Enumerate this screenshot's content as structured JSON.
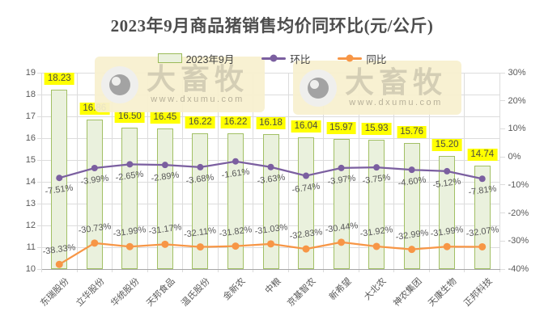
{
  "title": "2023年9月商品猪销售均价同环比(元/公斤)",
  "legend": [
    {
      "label": "2023年9月",
      "type": "bar",
      "fill": "#eaf1dd",
      "border": "#9bbb59"
    },
    {
      "label": "环比",
      "type": "line",
      "color": "#7b5fa0"
    },
    {
      "label": "同比",
      "type": "line",
      "color": "#f79646"
    }
  ],
  "watermark": {
    "brand": "大畜牧",
    "url": "www.dxumu.com"
  },
  "chart_data": {
    "type": "bar+line",
    "categories": [
      "东瑞股份",
      "立华股份",
      "华统股份",
      "天邦食品",
      "温氏股份",
      "金新农",
      "中粮",
      "京基智农",
      "新希望",
      "大北农",
      "神农集团",
      "天康生物",
      "正邦科技"
    ],
    "series": [
      {
        "name": "2023年9月",
        "type": "bar",
        "axis": "left",
        "values": [
          18.23,
          16.86,
          16.5,
          16.45,
          16.22,
          16.22,
          16.18,
          16.04,
          15.97,
          15.93,
          15.76,
          15.2,
          14.74
        ]
      },
      {
        "name": "环比",
        "type": "line",
        "axis": "right",
        "unit": "%",
        "values": [
          -7.51,
          -3.99,
          -2.65,
          -2.89,
          -3.68,
          -1.61,
          -3.63,
          -6.74,
          -3.97,
          -3.75,
          -4.6,
          -5.12,
          -7.81
        ]
      },
      {
        "name": "同比",
        "type": "line",
        "axis": "right",
        "unit": "%",
        "values": [
          -38.33,
          -30.73,
          -31.99,
          -31.17,
          -32.11,
          -31.82,
          -31.03,
          -32.83,
          -30.44,
          -31.92,
          -32.99,
          -31.99,
          -32.07
        ]
      }
    ],
    "left_axis": {
      "min": 10,
      "max": 19,
      "step": 1,
      "ticks": [
        "19",
        "18",
        "17",
        "16",
        "15",
        "14",
        "13",
        "12",
        "11",
        "10"
      ]
    },
    "right_axis": {
      "min": -40,
      "max": 30,
      "step": 10,
      "ticks": [
        "30%",
        "20%",
        "10%",
        "0%",
        "-10%",
        "-20%",
        "-30%",
        "-40%"
      ]
    },
    "grid": {
      "horizontal": true,
      "vertical": true
    },
    "legend_position": "top",
    "colors": {
      "bar_fill": "#eaf1dd",
      "bar_border": "#a2c065",
      "line_huanbi": "#7b5fa0",
      "line_tongbi": "#f79646",
      "bar_label_bg": "#ffff00",
      "label_text": "#595959"
    }
  }
}
